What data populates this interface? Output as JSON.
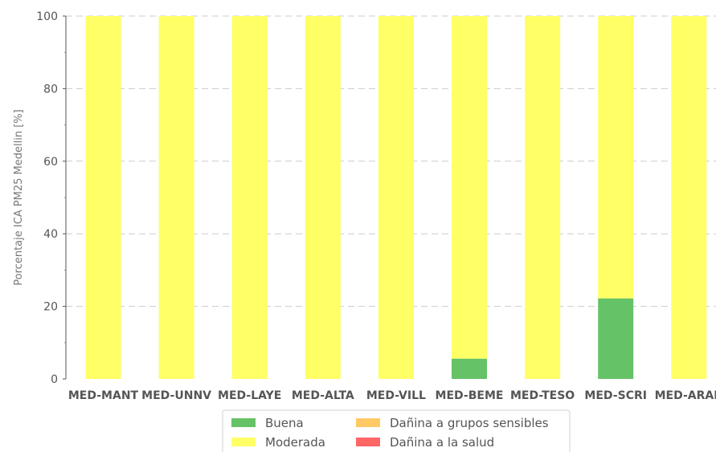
{
  "chart_data": {
    "type": "bar",
    "stacked": true,
    "title": "",
    "xlabel": "",
    "ylabel": "Porcentaje ICA PM25 Medellin [%]",
    "ylim": [
      0,
      100
    ],
    "yticks": [
      0,
      20,
      40,
      60,
      80,
      100
    ],
    "grid": true,
    "legend_position": "bottom",
    "categories": [
      "MED-MANT",
      "MED-UNNV",
      "MED-LAYE",
      "MED-ALTA",
      "MED-VILL",
      "MED-BEME",
      "MED-TESO",
      "MED-SCRI",
      "MED-ARAN"
    ],
    "series": [
      {
        "name": "Buena",
        "color": "#66c266",
        "values": [
          0,
          0,
          0,
          0,
          0,
          5.6,
          0,
          22.2,
          0
        ]
      },
      {
        "name": "Moderada",
        "color": "#ffff66",
        "values": [
          100,
          100,
          100,
          100,
          100,
          94.4,
          100,
          77.8,
          100
        ]
      },
      {
        "name": "Dañina a grupos sensibles",
        "color": "#ffc966",
        "values": [
          0,
          0,
          0,
          0,
          0,
          0,
          0,
          0,
          0
        ]
      },
      {
        "name": "Dañina a la salud",
        "color": "#ff6666",
        "values": [
          0,
          0,
          0,
          0,
          0,
          0,
          0,
          0,
          0
        ]
      }
    ],
    "legend_order": [
      "Buena",
      "Moderada",
      "Dañina a grupos sensibles",
      "Dañina a la salud"
    ]
  }
}
